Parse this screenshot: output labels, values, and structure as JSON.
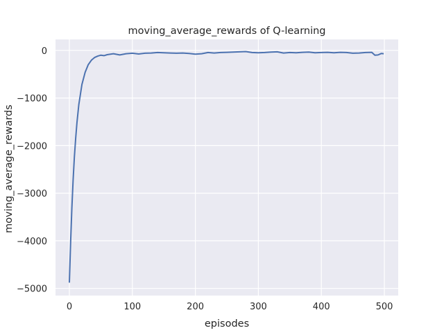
{
  "chart_data": {
    "type": "line",
    "title": "moving_average_rewards of Q-learning",
    "xlabel": "episodes",
    "ylabel": "moving_average_rewards",
    "xlim": [
      -22,
      522
    ],
    "ylim": [
      -5150,
      230
    ],
    "xticks": [
      0,
      100,
      200,
      300,
      400,
      500
    ],
    "yticks": [
      0,
      -1000,
      -2000,
      -3000,
      -4000,
      -5000
    ],
    "grid": true,
    "background_color": "#eaeaf2",
    "line_color": "#4c72b0",
    "series": [
      {
        "x": [
          0,
          2,
          4,
          6,
          8,
          10,
          12,
          15,
          20,
          25,
          30,
          35,
          40,
          45,
          50,
          55,
          60,
          70,
          80,
          90,
          100,
          110,
          120,
          130,
          140,
          150,
          160,
          170,
          180,
          190,
          200,
          210,
          220,
          230,
          240,
          250,
          260,
          270,
          280,
          290,
          300,
          310,
          320,
          330,
          340,
          350,
          360,
          370,
          380,
          390,
          400,
          410,
          420,
          430,
          440,
          450,
          460,
          470,
          480,
          485,
          490,
          495,
          499
        ],
        "y": [
          -4880,
          -4030,
          -3310,
          -2720,
          -2240,
          -1845,
          -1520,
          -1140,
          -715,
          -460,
          -300,
          -205,
          -150,
          -120,
          -100,
          -110,
          -90,
          -70,
          -95,
          -70,
          -60,
          -75,
          -60,
          -55,
          -45,
          -50,
          -55,
          -60,
          -55,
          -65,
          -80,
          -70,
          -45,
          -55,
          -45,
          -40,
          -35,
          -30,
          -25,
          -45,
          -50,
          -45,
          -35,
          -30,
          -55,
          -45,
          -50,
          -40,
          -35,
          -50,
          -45,
          -40,
          -50,
          -40,
          -45,
          -60,
          -55,
          -45,
          -40,
          -100,
          -95,
          -65,
          -70
        ]
      }
    ]
  }
}
